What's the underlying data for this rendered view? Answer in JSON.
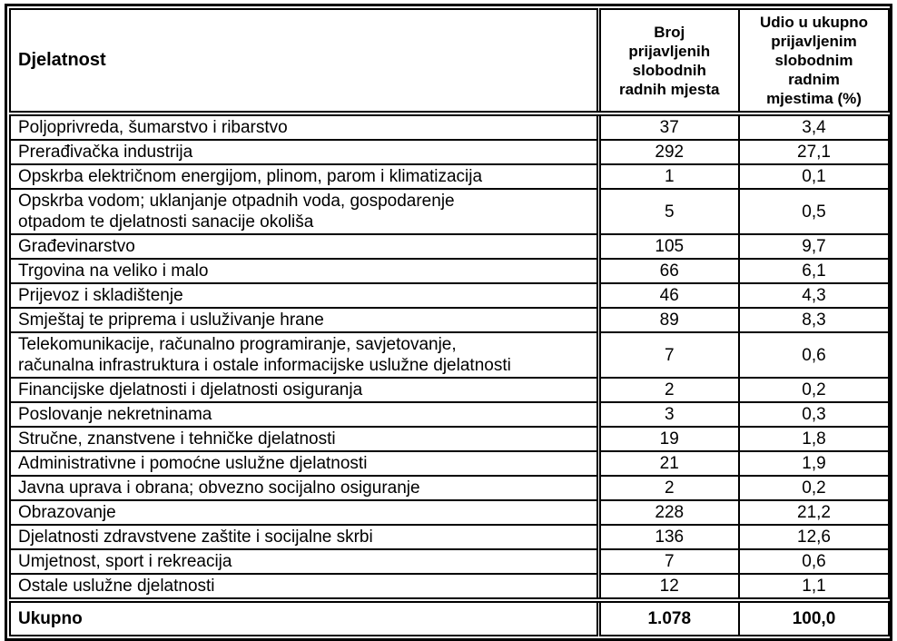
{
  "colors": {
    "border": "#000000",
    "text": "#000000",
    "background": "#ffffff"
  },
  "table": {
    "columns": {
      "activity": "Djelatnost",
      "count": "Broj\nprijavljenih\nslobodnih\nradnih mjesta",
      "share": "Udio u ukupno\nprijavljenim\nslobodnim\nradnim\nmjestima (%)"
    },
    "rows": [
      {
        "activity": "Poljoprivreda, šumarstvo i ribarstvo",
        "count": "37",
        "share": "3,4"
      },
      {
        "activity": "Prerađivačka industrija",
        "count": "292",
        "share": "27,1"
      },
      {
        "activity": "Opskrba električnom energijom, plinom, parom i klimatizacija",
        "count": "1",
        "share": "0,1"
      },
      {
        "activity": "Opskrba vodom; uklanjanje otpadnih voda, gospodarenje\notpadom te djelatnosti sanacije okoliša",
        "count": "5",
        "share": "0,5"
      },
      {
        "activity": "Građevinarstvo",
        "count": "105",
        "share": "9,7"
      },
      {
        "activity": "Trgovina na veliko i malo",
        "count": "66",
        "share": "6,1"
      },
      {
        "activity": "Prijevoz i skladištenje",
        "count": "46",
        "share": "4,3"
      },
      {
        "activity": "Smještaj te priprema i usluživanje hrane",
        "count": "89",
        "share": "8,3"
      },
      {
        "activity": "Telekomunikacije, računalno programiranje, savjetovanje,\nračunalna infrastruktura i ostale informacijske uslužne djelatnosti",
        "count": "7",
        "share": "0,6"
      },
      {
        "activity": "Financijske djelatnosti i djelatnosti osiguranja",
        "count": "2",
        "share": "0,2"
      },
      {
        "activity": "Poslovanje nekretninama",
        "count": "3",
        "share": "0,3"
      },
      {
        "activity": "Stručne, znanstvene i tehničke djelatnosti",
        "count": "19",
        "share": "1,8"
      },
      {
        "activity": "Administrativne i pomoćne uslužne djelatnosti",
        "count": "21",
        "share": "1,9"
      },
      {
        "activity": "Javna uprava i obrana; obvezno socijalno osiguranje",
        "count": "2",
        "share": "0,2"
      },
      {
        "activity": "Obrazovanje",
        "count": "228",
        "share": "21,2"
      },
      {
        "activity": "Djelatnosti zdravstvene zaštite i socijalne skrbi",
        "count": "136",
        "share": "12,6"
      },
      {
        "activity": "Umjetnost, sport i rekreacija",
        "count": "7",
        "share": "0,6"
      },
      {
        "activity": "Ostale uslužne djelatnosti",
        "count": "12",
        "share": "1,1"
      }
    ],
    "total": {
      "label": "Ukupno",
      "count": "1.078",
      "share": "100,0"
    }
  }
}
